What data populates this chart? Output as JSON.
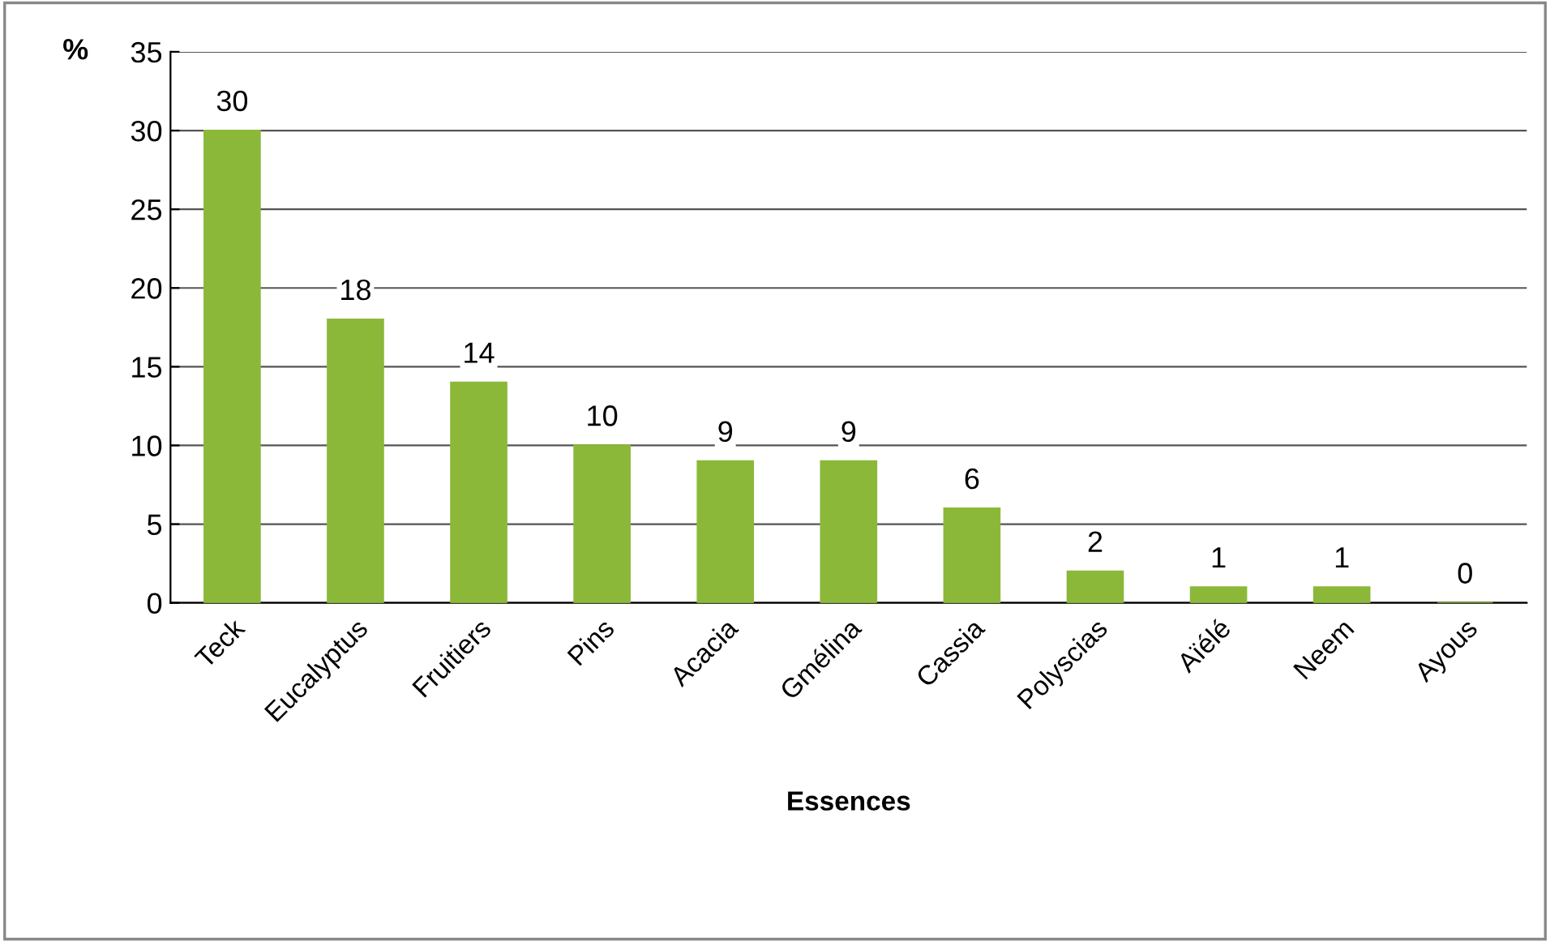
{
  "chart_data": {
    "type": "bar",
    "ylabel": "%",
    "xlabel": "Essences",
    "categories": [
      "Teck",
      "Eucalyptus",
      "Fruitiers",
      "Pins",
      "Acacia",
      "Gmélina",
      "Cassia",
      "Polyscias",
      "Aïélé",
      "Neem",
      "Ayous"
    ],
    "values": [
      30,
      18,
      14,
      10,
      9,
      9,
      6,
      2,
      1,
      1,
      0
    ],
    "color": "#8cb83a",
    "ylim": [
      0,
      35
    ],
    "yticks": [
      0,
      5,
      10,
      15,
      20,
      25,
      30,
      35
    ],
    "grid": "y",
    "data_labels": true
  }
}
